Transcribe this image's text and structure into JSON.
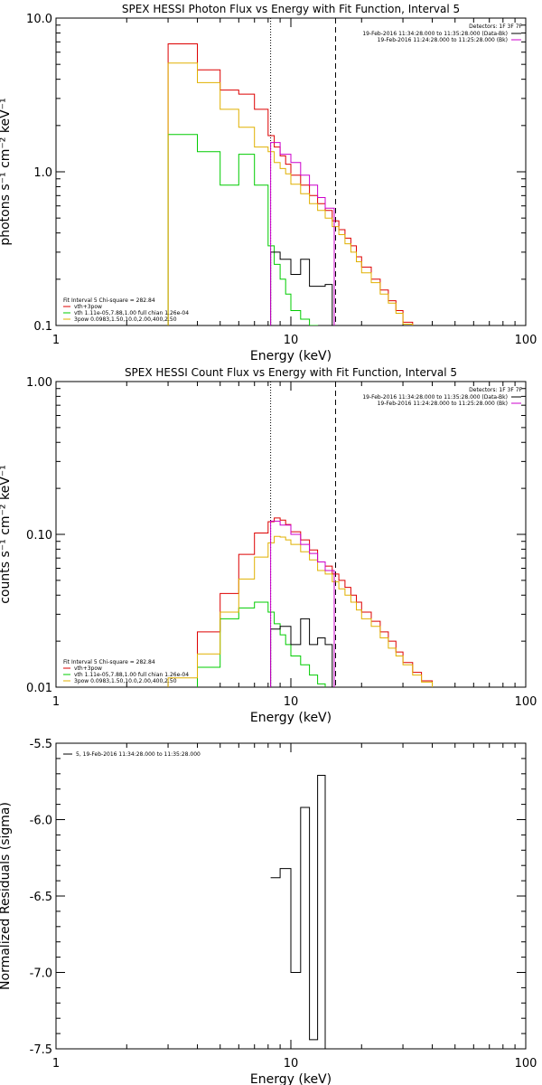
{
  "chart_data": [
    {
      "type": "line",
      "title": "SPEX HESSI Photon Flux vs Energy with Fit Function, Interval 5",
      "xlabel": "Energy (keV)",
      "ylabel": "photons s⁻¹ cm⁻² keV⁻¹",
      "xscale": "log",
      "yscale": "log",
      "xlim": [
        1,
        100
      ],
      "ylim": [
        0.1,
        10
      ],
      "x_ticks": [
        {
          "v": 1,
          "label": "1"
        },
        {
          "v": 10,
          "label": "10"
        },
        {
          "v": 100,
          "label": "100"
        }
      ],
      "y_ticks": [
        {
          "v": 0.1,
          "label": "0.1"
        },
        {
          "v": 1,
          "label": "1.0"
        },
        {
          "v": 10,
          "label": "10.0"
        }
      ],
      "vlines": [
        {
          "x": 8.2,
          "style": "dotted"
        },
        {
          "x": 15.5,
          "style": "dashed"
        }
      ],
      "legend_top_right": {
        "header": "Detectors: 1F 3F 7F",
        "entries": [
          {
            "text": "19-Feb-2016 11:34:28.000 to 11:35:28.000 (Data-Bk)",
            "color": "#000000"
          },
          {
            "text": "19-Feb-2016 11:24:28.000 to 11:25:28.000 (Bk)",
            "color": "#cc00cc"
          }
        ]
      },
      "legend_bottom_left": {
        "header": "Fit Interval 5   Chi-square = 282.84",
        "entries": [
          {
            "text": "vth+3pow",
            "color": "#dd0000"
          },
          {
            "text": "vth 1.11e-05,7.88,1.00  full chian 1.26e-04",
            "color": "#00cc00"
          },
          {
            "text": "3pow 0.0983,1.50,10.0,2.00,400,2.50",
            "color": "#e0b000"
          }
        ]
      },
      "series": [
        {
          "name": "vth+3pow",
          "color": "#dd0000",
          "edges": [
            3,
            4,
            5,
            6,
            7,
            8,
            8.5,
            9,
            9.5,
            10,
            11,
            12,
            13,
            14,
            15,
            16,
            17,
            18,
            19,
            20,
            22,
            24,
            26,
            28,
            30,
            33,
            36
          ],
          "values": [
            6.8,
            4.6,
            3.4,
            3.2,
            2.55,
            1.72,
            1.45,
            1.27,
            1.12,
            0.95,
            0.82,
            0.7,
            0.62,
            0.56,
            0.48,
            0.42,
            0.37,
            0.33,
            0.28,
            0.24,
            0.2,
            0.17,
            0.145,
            0.125,
            0.105,
            0.098
          ]
        },
        {
          "name": "vth 1.11e-05,7.88,1.00  full chian 1.26e-04",
          "color": "#00cc00",
          "edges": [
            3,
            4,
            5,
            6,
            7,
            8,
            8.5,
            9,
            9.5,
            10,
            11,
            12,
            13
          ],
          "values": [
            1.75,
            1.35,
            0.82,
            1.3,
            0.82,
            0.33,
            0.25,
            0.2,
            0.16,
            0.125,
            0.11,
            0.1
          ]
        },
        {
          "name": "3pow 0.0983,1.50,10.0,2.00,400,2.50",
          "color": "#e0b000",
          "edges": [
            3,
            4,
            5,
            6,
            7,
            8,
            8.5,
            9,
            9.5,
            10,
            11,
            12,
            13,
            14,
            15,
            16,
            17,
            18,
            19,
            20,
            22,
            24,
            26,
            28,
            30,
            33,
            36
          ],
          "values": [
            5.1,
            3.8,
            2.55,
            1.95,
            1.45,
            1.35,
            1.15,
            1.05,
            0.97,
            0.83,
            0.72,
            0.62,
            0.56,
            0.5,
            0.44,
            0.39,
            0.34,
            0.3,
            0.26,
            0.22,
            0.19,
            0.16,
            0.14,
            0.12,
            0.102,
            0.096
          ]
        },
        {
          "name": "19-Feb-2016 11:34:28.000 to 11:35:28.000 (Data-Bk)",
          "color": "#000000",
          "edges": [
            8.2,
            9,
            10,
            11,
            12,
            13,
            14,
            15
          ],
          "values": [
            0.3,
            0.27,
            0.215,
            0.27,
            0.18,
            0.18,
            0.185
          ]
        },
        {
          "name": "19-Feb-2016 11:24:28.000 to 11:25:28.000 (Bk)",
          "color": "#cc00cc",
          "edges": [
            8.2,
            9,
            10,
            11,
            12,
            13,
            14,
            15.3
          ],
          "values": [
            1.55,
            1.3,
            1.15,
            0.95,
            0.82,
            0.68,
            0.58
          ]
        }
      ]
    },
    {
      "type": "line",
      "title": "SPEX HESSI Count Flux vs Energy with Fit Function, Interval 5",
      "xlabel": "Energy (keV)",
      "ylabel": "counts s⁻¹ cm⁻² keV⁻¹",
      "xscale": "log",
      "yscale": "log",
      "xlim": [
        1,
        100
      ],
      "ylim": [
        0.01,
        1
      ],
      "x_ticks": [
        {
          "v": 1,
          "label": "1"
        },
        {
          "v": 10,
          "label": "10"
        },
        {
          "v": 100,
          "label": "100"
        }
      ],
      "y_ticks": [
        {
          "v": 0.01,
          "label": "0.01"
        },
        {
          "v": 0.1,
          "label": "0.10"
        },
        {
          "v": 1,
          "label": "1.00"
        }
      ],
      "vlines": [
        {
          "x": 8.2,
          "style": "dotted"
        },
        {
          "x": 15.5,
          "style": "dashed"
        }
      ],
      "legend_top_right": {
        "header": "Detectors: 1F 3F 7F",
        "entries": [
          {
            "text": "19-Feb-2016 11:34:28.000 to 11:35:28.000 (Data-Bk)",
            "color": "#000000"
          },
          {
            "text": "19-Feb-2016 11:24:28.000 to 11:25:28.000 (Bk)",
            "color": "#cc00cc"
          }
        ]
      },
      "legend_bottom_left": {
        "header": "Fit Interval 5   Chi-square = 282.84",
        "entries": [
          {
            "text": "vth+3pow",
            "color": "#dd0000"
          },
          {
            "text": "vth 1.11e-05,7.88,1.00  full chian 1.26e-04",
            "color": "#00cc00"
          },
          {
            "text": "3pow 0.0983,1.50,10.0,2.00,400,2.50",
            "color": "#e0b000"
          }
        ]
      },
      "series": [
        {
          "name": "vth+3pow",
          "color": "#dd0000",
          "edges": [
            4,
            5,
            6,
            7,
            8,
            8.5,
            9,
            9.5,
            10,
            11,
            12,
            13,
            14,
            15,
            16,
            17,
            18,
            19,
            20,
            22,
            24,
            26,
            28,
            30,
            33,
            36,
            40
          ],
          "values": [
            0.023,
            0.041,
            0.074,
            0.102,
            0.121,
            0.128,
            0.124,
            0.116,
            0.104,
            0.092,
            0.079,
            0.066,
            0.062,
            0.055,
            0.05,
            0.045,
            0.04,
            0.036,
            0.031,
            0.027,
            0.023,
            0.02,
            0.017,
            0.0145,
            0.0125,
            0.011
          ]
        },
        {
          "name": "vth 1.11e-05,7.88,1.00  full chian 1.26e-04",
          "color": "#00cc00",
          "edges": [
            4,
            5,
            6,
            7,
            8,
            8.5,
            9,
            9.5,
            10,
            11,
            12,
            13,
            14
          ],
          "values": [
            0.0135,
            0.028,
            0.033,
            0.036,
            0.031,
            0.026,
            0.022,
            0.019,
            0.016,
            0.014,
            0.012,
            0.0105
          ]
        },
        {
          "name": "3pow 0.0983,1.50,10.0,2.00,400,2.50",
          "color": "#e0b000",
          "edges": [
            3,
            4,
            5,
            6,
            7,
            8,
            8.5,
            9,
            9.5,
            10,
            11,
            12,
            13,
            14,
            15,
            16,
            17,
            18,
            19,
            20,
            22,
            24,
            26,
            28,
            30,
            33,
            36,
            40
          ],
          "values": [
            0.0115,
            0.0165,
            0.031,
            0.051,
            0.071,
            0.088,
            0.097,
            0.096,
            0.092,
            0.086,
            0.077,
            0.068,
            0.058,
            0.055,
            0.049,
            0.044,
            0.04,
            0.036,
            0.032,
            0.028,
            0.025,
            0.021,
            0.018,
            0.016,
            0.014,
            0.012,
            0.0108
          ]
        },
        {
          "name": "19-Feb-2016 11:34:28.000 to 11:35:28.000 (Data-Bk)",
          "color": "#000000",
          "edges": [
            8.2,
            9,
            10,
            11,
            12,
            13,
            14,
            15
          ],
          "values": [
            0.024,
            0.025,
            0.019,
            0.028,
            0.019,
            0.021,
            0.019
          ]
        },
        {
          "name": "19-Feb-2016 11:24:28.000 to 11:25:28.000 (Bk)",
          "color": "#cc00cc",
          "edges": [
            8.2,
            9,
            10,
            11,
            12,
            13,
            14,
            15.3
          ],
          "values": [
            0.122,
            0.115,
            0.1,
            0.086,
            0.075,
            0.066,
            0.058
          ]
        }
      ]
    },
    {
      "type": "line",
      "title": "",
      "xlabel": "Energy (keV)",
      "ylabel": "Normalized Residuals (sigma)",
      "xscale": "log",
      "yscale": "linear",
      "xlim": [
        1,
        100
      ],
      "ylim": [
        -7.5,
        -5.5
      ],
      "x_ticks": [
        {
          "v": 1,
          "label": "1"
        },
        {
          "v": 10,
          "label": "10"
        },
        {
          "v": 100,
          "label": "100"
        }
      ],
      "y_ticks": [
        {
          "v": -7.5,
          "label": "-7.5"
        },
        {
          "v": -7,
          "label": "-7.0"
        },
        {
          "v": -6.5,
          "label": "-6.5"
        },
        {
          "v": -6,
          "label": "-6.0"
        },
        {
          "v": -5.5,
          "label": "-5.5"
        }
      ],
      "legend_top_left": {
        "entries": [
          {
            "text": "5, 19-Feb-2016 11:34:28.000 to 11:35:28.000",
            "color": "#000000"
          }
        ]
      },
      "series": [
        {
          "name": "5, 19-Feb-2016 11:34:28.000 to 11:35:28.000",
          "color": "#000000",
          "edges": [
            8.2,
            9,
            10,
            11,
            12,
            13,
            14,
            15
          ],
          "values": [
            -6.38,
            -6.32,
            -7.0,
            -5.92,
            -7.44,
            -5.71,
            -7.5
          ]
        }
      ]
    }
  ]
}
